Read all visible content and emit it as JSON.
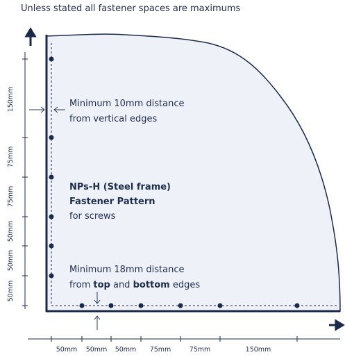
{
  "header": {
    "title": "Unless stated all fastener spaces are maximums"
  },
  "notes": {
    "vertical_edge": [
      "Minimum 10mm distance",
      "from vertical edges"
    ],
    "pattern": {
      "name": "NPs-H (Steel frame)",
      "subtitle": "Fastener Pattern",
      "detail": "for screws"
    },
    "top_bottom": {
      "line1": "Minimum 18mm distance",
      "line2": [
        "from ",
        "top",
        " and ",
        "bottom",
        " edges"
      ]
    }
  },
  "dimensions": {
    "vertical": [
      "150mm",
      "75mm",
      "75mm",
      "50mm",
      "50mm",
      "50mm"
    ],
    "horizontal": [
      "50mm",
      "50mm",
      "50mm",
      "75mm",
      "75mm",
      "150mm"
    ]
  }
}
